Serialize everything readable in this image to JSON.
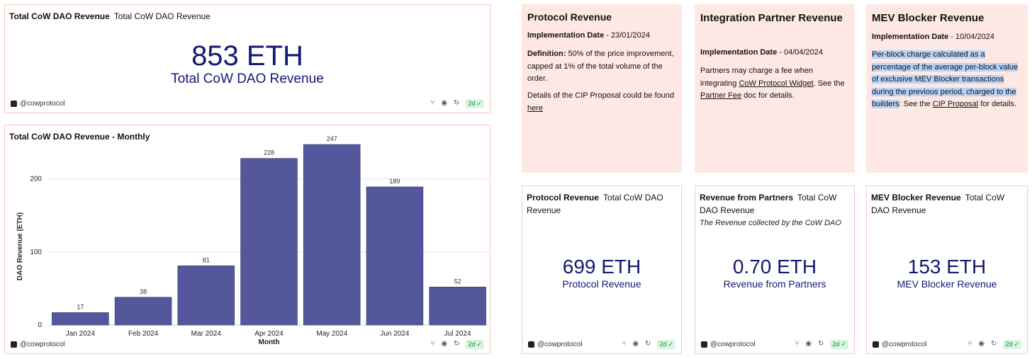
{
  "total_panel": {
    "title": "Total CoW DAO Revenue",
    "subtitle": "Total CoW DAO Revenue",
    "value": "853 ETH",
    "label": "Total CoW DAO Revenue",
    "handle": "@cowprotocol",
    "freshness": "2d"
  },
  "monthly_panel": {
    "title": "Total CoW DAO Revenue - Monthly",
    "handle": "@cowprotocol",
    "freshness": "2d"
  },
  "chart_data": {
    "type": "bar",
    "title": "Total CoW DAO Revenue - Monthly",
    "categories": [
      "Jan 2024",
      "Feb 2024",
      "Mar 2024",
      "Apr 2024",
      "May 2024",
      "Jun 2024",
      "Jul 2024"
    ],
    "values": [
      17,
      38,
      81,
      228,
      247,
      189,
      52
    ],
    "xlabel": "Month",
    "ylabel": "DAO Revenue (ETH)",
    "ylim": [
      0,
      250
    ],
    "yticks": [
      0,
      100,
      200
    ],
    "grid": true,
    "bar_color": "#55579c"
  },
  "protocol_text": {
    "title": "Protocol Revenue",
    "date_label": "Implementation Date",
    "date_value": " - 23/01/2024",
    "def_label": "Definition:",
    "def_text": " 50% of the price improvement, capped at 1% of the total volume of the order.",
    "details_text": "Details of the CIP Proposal could be found ",
    "details_link": "here"
  },
  "partner_text": {
    "title": "Integration Partner Revenue",
    "date_label": "Implementation Date",
    "date_value": " - 04/04/2024",
    "body_pre": "Partners may charge a fee when integrating ",
    "body_link1": "CoW Protocol Widget",
    "body_mid": ". See the ",
    "body_link2": "Partner Fee",
    "body_post": " doc for details."
  },
  "mev_text": {
    "title": "MEV Blocker Revenue",
    "date_label": "Implementation Date",
    "date_value": " - 10/04/2024",
    "body_highlight": "Per-block charge calculated as a percentage of the average per-block value of exclusive MEV Blocker transactions during the previous period, charged to the builders",
    "body_mid": ": See the ",
    "body_link": "CIP Proposal",
    "body_post": " for details."
  },
  "protocol_counter": {
    "title": "Protocol Revenue",
    "subtitle": "Total CoW DAO Revenue",
    "value": "699 ETH",
    "label": "Protocol Revenue",
    "handle": "@cowprotocol",
    "freshness": "2d"
  },
  "partner_counter": {
    "title": "Revenue from Partners",
    "subtitle": "Total CoW DAO Revenue",
    "description": "The Revenue collected by the CoW DAO",
    "value": "0.70 ETH",
    "label": "Revenue from Partners",
    "handle": "@cowprotocol",
    "freshness": "2d"
  },
  "mev_counter": {
    "title": "MEV Blocker Revenue",
    "subtitle": "Total CoW DAO Revenue",
    "value": "153 ETH",
    "label": "MEV Blocker Revenue",
    "handle": "@cowprotocol",
    "freshness": "2d"
  },
  "icons": {
    "fork": "⑂",
    "camera": "◉",
    "refresh": "↻",
    "check": "✓"
  }
}
